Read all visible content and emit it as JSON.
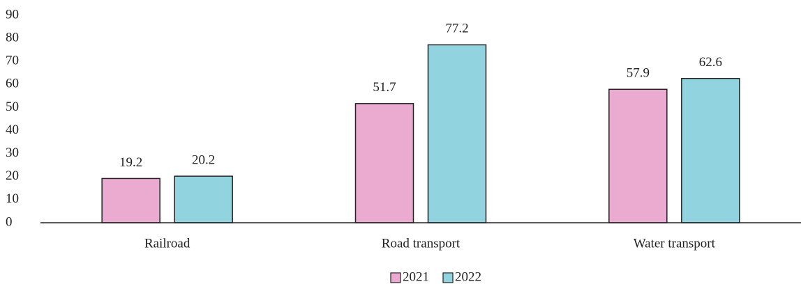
{
  "chart_data": {
    "type": "bar",
    "categories": [
      "Railroad",
      "Road transport",
      "Water transport"
    ],
    "series": [
      {
        "name": "2021",
        "color": "#ebaacf",
        "values": [
          19.2,
          51.7,
          57.9
        ]
      },
      {
        "name": "2022",
        "color": "#91d3df",
        "values": [
          20.2,
          77.2,
          62.6
        ]
      }
    ],
    "ylim": [
      0,
      90
    ],
    "yticks": [
      0,
      10,
      20,
      30,
      40,
      50,
      60,
      70,
      80,
      90
    ],
    "grid": false,
    "legend": "bottom"
  }
}
